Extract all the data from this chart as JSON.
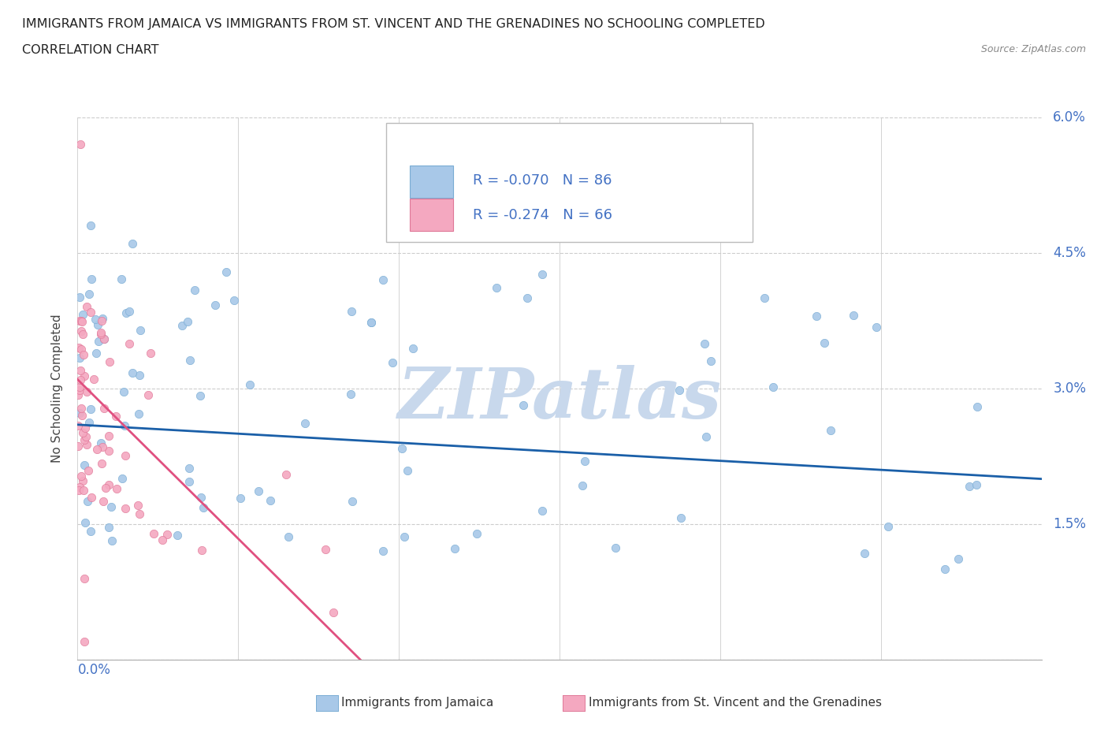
{
  "title_line1": "IMMIGRANTS FROM JAMAICA VS IMMIGRANTS FROM ST. VINCENT AND THE GRENADINES NO SCHOOLING COMPLETED",
  "title_line2": "CORRELATION CHART",
  "source_text": "Source: ZipAtlas.com",
  "xlim": [
    0.0,
    0.3
  ],
  "ylim": [
    0.0,
    0.06
  ],
  "jamaica_R": -0.07,
  "jamaica_N": 86,
  "svg_R": -0.274,
  "svg_N": 66,
  "jamaica_color": "#a8c8e8",
  "jamaica_edge": "#7aadd4",
  "svg_color": "#f4a8c0",
  "svg_edge": "#e07898",
  "trend_jamaica_color": "#1a5fa8",
  "trend_svg_color": "#e05080",
  "watermark_text": "ZIPatlas",
  "watermark_color": "#c8d8ec",
  "legend_label_jamaica": "Immigrants from Jamaica",
  "legend_label_svg": "Immigrants from St. Vincent and the Grenadines",
  "ylabel": "No Schooling Completed",
  "grid_color": "#cccccc",
  "title_color": "#222222",
  "axis_label_color": "#4472c4",
  "source_color": "#888888"
}
